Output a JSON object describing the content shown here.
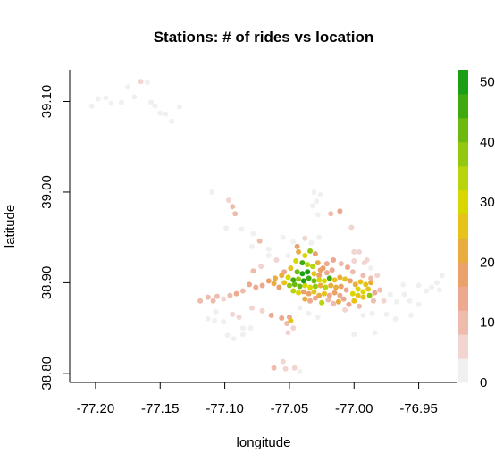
{
  "chart_data": {
    "type": "scatter",
    "title": "Stations: # of rides vs location",
    "xlabel": "longitude",
    "ylabel": "latitude",
    "xlim": [
      -77.22,
      -76.92
    ],
    "ylim": [
      38.79,
      39.135
    ],
    "x_ticks": [
      -77.2,
      -77.15,
      -77.1,
      -77.05,
      -77.0,
      -76.95
    ],
    "x_tick_labels": [
      "-77.20",
      "-77.15",
      "-77.10",
      "-77.05",
      "-77.00",
      "-76.95"
    ],
    "y_ticks": [
      38.8,
      38.9,
      39.0,
      39.1
    ],
    "y_tick_labels": [
      "38.80",
      "38.90",
      "39.00",
      "39.10"
    ],
    "colorbar": {
      "range": [
        0,
        52
      ],
      "tick_values": [
        0,
        10,
        20,
        30,
        40,
        50
      ],
      "tick_labels": [
        "0",
        "10",
        "20",
        "30",
        "40",
        "50"
      ],
      "colors": [
        "#f0f0f0",
        "#f2d4d0",
        "#eebcad",
        "#eda98f",
        "#eaa16a",
        "#e9ad3f",
        "#e6c21a",
        "#d8d800",
        "#b7d40d",
        "#92c810",
        "#6cba10",
        "#3faa10",
        "#1a9f14"
      ]
    },
    "grid": false,
    "points": [
      {
        "x": -77.203,
        "y": 39.095,
        "v": 1
      },
      {
        "x": -77.198,
        "y": 39.103,
        "v": 1
      },
      {
        "x": -77.192,
        "y": 39.104,
        "v": 1
      },
      {
        "x": -77.188,
        "y": 39.098,
        "v": 1
      },
      {
        "x": -77.18,
        "y": 39.099,
        "v": 1
      },
      {
        "x": -77.175,
        "y": 39.116,
        "v": 1
      },
      {
        "x": -77.17,
        "y": 39.105,
        "v": 1
      },
      {
        "x": -77.165,
        "y": 39.122,
        "v": 5
      },
      {
        "x": -77.16,
        "y": 39.121,
        "v": 1
      },
      {
        "x": -77.157,
        "y": 39.099,
        "v": 1
      },
      {
        "x": -77.15,
        "y": 39.087,
        "v": 1
      },
      {
        "x": -77.146,
        "y": 39.086,
        "v": 1
      },
      {
        "x": -77.141,
        "y": 39.078,
        "v": 1
      },
      {
        "x": -77.135,
        "y": 39.094,
        "v": 1
      },
      {
        "x": -77.154,
        "y": 39.095,
        "v": 1
      },
      {
        "x": -77.11,
        "y": 39.0,
        "v": 1
      },
      {
        "x": -77.097,
        "y": 38.991,
        "v": 5
      },
      {
        "x": -77.094,
        "y": 38.984,
        "v": 8
      },
      {
        "x": -77.092,
        "y": 38.976,
        "v": 8
      },
      {
        "x": -77.099,
        "y": 38.96,
        "v": 2
      },
      {
        "x": -77.087,
        "y": 38.959,
        "v": 2
      },
      {
        "x": -77.078,
        "y": 38.954,
        "v": 3
      },
      {
        "x": -77.073,
        "y": 38.946,
        "v": 11
      },
      {
        "x": -77.079,
        "y": 38.94,
        "v": 2
      },
      {
        "x": -77.066,
        "y": 38.937,
        "v": 2
      },
      {
        "x": -77.055,
        "y": 38.95,
        "v": 2
      },
      {
        "x": -77.047,
        "y": 38.945,
        "v": 3
      },
      {
        "x": -77.038,
        "y": 38.949,
        "v": 6
      },
      {
        "x": -77.033,
        "y": 38.944,
        "v": 3
      },
      {
        "x": -77.027,
        "y": 38.95,
        "v": 2
      },
      {
        "x": -77.031,
        "y": 39.0,
        "v": 1
      },
      {
        "x": -77.026,
        "y": 38.997,
        "v": 1
      },
      {
        "x": -77.029,
        "y": 38.99,
        "v": 1
      },
      {
        "x": -77.032,
        "y": 38.985,
        "v": 1
      },
      {
        "x": -77.028,
        "y": 38.975,
        "v": 1
      },
      {
        "x": -77.018,
        "y": 38.976,
        "v": 11
      },
      {
        "x": -77.011,
        "y": 38.979,
        "v": 12
      },
      {
        "x": -77.002,
        "y": 38.961,
        "v": 4
      },
      {
        "x": -77.0,
        "y": 38.934,
        "v": 6
      },
      {
        "x": -76.996,
        "y": 38.934,
        "v": 6
      },
      {
        "x": -76.992,
        "y": 38.922,
        "v": 4
      },
      {
        "x": -76.987,
        "y": 38.916,
        "v": 2
      },
      {
        "x": -77.119,
        "y": 38.88,
        "v": 8
      },
      {
        "x": -77.113,
        "y": 38.884,
        "v": 8
      },
      {
        "x": -77.109,
        "y": 38.88,
        "v": 10
      },
      {
        "x": -77.106,
        "y": 38.885,
        "v": 9
      },
      {
        "x": -77.101,
        "y": 38.882,
        "v": 7
      },
      {
        "x": -77.096,
        "y": 38.886,
        "v": 10
      },
      {
        "x": -77.091,
        "y": 38.888,
        "v": 12
      },
      {
        "x": -77.086,
        "y": 38.891,
        "v": 10
      },
      {
        "x": -77.081,
        "y": 38.898,
        "v": 12
      },
      {
        "x": -77.076,
        "y": 38.895,
        "v": 14
      },
      {
        "x": -77.071,
        "y": 38.897,
        "v": 15
      },
      {
        "x": -77.066,
        "y": 38.902,
        "v": 18
      },
      {
        "x": -77.061,
        "y": 38.905,
        "v": 20
      },
      {
        "x": -77.056,
        "y": 38.908,
        "v": 22
      },
      {
        "x": -77.107,
        "y": 38.868,
        "v": 3
      },
      {
        "x": -77.101,
        "y": 38.857,
        "v": 2
      },
      {
        "x": -77.094,
        "y": 38.865,
        "v": 4
      },
      {
        "x": -77.089,
        "y": 38.862,
        "v": 6
      },
      {
        "x": -77.086,
        "y": 38.85,
        "v": 2
      },
      {
        "x": -77.079,
        "y": 38.872,
        "v": 4
      },
      {
        "x": -77.071,
        "y": 38.869,
        "v": 5
      },
      {
        "x": -77.098,
        "y": 38.842,
        "v": 1
      },
      {
        "x": -77.093,
        "y": 38.838,
        "v": 2
      },
      {
        "x": -77.108,
        "y": 38.858,
        "v": 1
      },
      {
        "x": -77.064,
        "y": 38.864,
        "v": 13
      },
      {
        "x": -77.056,
        "y": 38.861,
        "v": 14
      },
      {
        "x": -77.052,
        "y": 38.855,
        "v": 10
      },
      {
        "x": -77.05,
        "y": 38.862,
        "v": 12
      },
      {
        "x": -77.049,
        "y": 38.858,
        "v": 27
      },
      {
        "x": -77.051,
        "y": 38.845,
        "v": 6
      },
      {
        "x": -77.047,
        "y": 38.85,
        "v": 4
      },
      {
        "x": -77.062,
        "y": 38.806,
        "v": 11
      },
      {
        "x": -77.055,
        "y": 38.813,
        "v": 7
      },
      {
        "x": -77.053,
        "y": 38.805,
        "v": 5
      },
      {
        "x": -77.046,
        "y": 38.806,
        "v": 4
      },
      {
        "x": -77.042,
        "y": 38.802,
        "v": 1
      },
      {
        "x": -77.043,
        "y": 38.934,
        "v": 20
      },
      {
        "x": -77.038,
        "y": 38.93,
        "v": 30
      },
      {
        "x": -77.034,
        "y": 38.935,
        "v": 38
      },
      {
        "x": -77.03,
        "y": 38.932,
        "v": 18
      },
      {
        "x": -77.045,
        "y": 38.924,
        "v": 28
      },
      {
        "x": -77.04,
        "y": 38.922,
        "v": 44
      },
      {
        "x": -77.036,
        "y": 38.92,
        "v": 34
      },
      {
        "x": -77.032,
        "y": 38.918,
        "v": 32
      },
      {
        "x": -77.028,
        "y": 38.922,
        "v": 22
      },
      {
        "x": -77.024,
        "y": 38.916,
        "v": 18
      },
      {
        "x": -77.049,
        "y": 38.916,
        "v": 24
      },
      {
        "x": -77.044,
        "y": 38.912,
        "v": 40
      },
      {
        "x": -77.04,
        "y": 38.91,
        "v": 52
      },
      {
        "x": -77.036,
        "y": 38.912,
        "v": 48
      },
      {
        "x": -77.031,
        "y": 38.91,
        "v": 26
      },
      {
        "x": -77.027,
        "y": 38.908,
        "v": 16
      },
      {
        "x": -77.021,
        "y": 38.911,
        "v": 14
      },
      {
        "x": -77.017,
        "y": 38.914,
        "v": 12
      },
      {
        "x": -77.051,
        "y": 38.906,
        "v": 30
      },
      {
        "x": -77.047,
        "y": 38.903,
        "v": 46
      },
      {
        "x": -77.043,
        "y": 38.904,
        "v": 36
      },
      {
        "x": -77.039,
        "y": 38.902,
        "v": 50
      },
      {
        "x": -77.035,
        "y": 38.905,
        "v": 44
      },
      {
        "x": -77.031,
        "y": 38.902,
        "v": 42
      },
      {
        "x": -77.027,
        "y": 38.903,
        "v": 30
      },
      {
        "x": -77.023,
        "y": 38.902,
        "v": 28
      },
      {
        "x": -77.019,
        "y": 38.905,
        "v": 46
      },
      {
        "x": -77.015,
        "y": 38.903,
        "v": 24
      },
      {
        "x": -77.011,
        "y": 38.906,
        "v": 22
      },
      {
        "x": -77.007,
        "y": 38.904,
        "v": 26
      },
      {
        "x": -77.054,
        "y": 38.9,
        "v": 24
      },
      {
        "x": -77.05,
        "y": 38.897,
        "v": 36
      },
      {
        "x": -77.046,
        "y": 38.898,
        "v": 42
      },
      {
        "x": -77.042,
        "y": 38.896,
        "v": 40
      },
      {
        "x": -77.038,
        "y": 38.897,
        "v": 30
      },
      {
        "x": -77.034,
        "y": 38.895,
        "v": 28
      },
      {
        "x": -77.03,
        "y": 38.896,
        "v": 36
      },
      {
        "x": -77.026,
        "y": 38.897,
        "v": 22
      },
      {
        "x": -77.022,
        "y": 38.895,
        "v": 34
      },
      {
        "x": -77.018,
        "y": 38.897,
        "v": 20
      },
      {
        "x": -77.014,
        "y": 38.895,
        "v": 22
      },
      {
        "x": -77.01,
        "y": 38.896,
        "v": 18
      },
      {
        "x": -77.047,
        "y": 38.891,
        "v": 32
      },
      {
        "x": -77.043,
        "y": 38.889,
        "v": 28
      },
      {
        "x": -77.039,
        "y": 38.89,
        "v": 18
      },
      {
        "x": -77.035,
        "y": 38.888,
        "v": 16
      },
      {
        "x": -77.031,
        "y": 38.89,
        "v": 24
      },
      {
        "x": -77.027,
        "y": 38.886,
        "v": 20
      },
      {
        "x": -77.023,
        "y": 38.888,
        "v": 26
      },
      {
        "x": -77.019,
        "y": 38.886,
        "v": 14
      },
      {
        "x": -77.015,
        "y": 38.889,
        "v": 16
      },
      {
        "x": -77.011,
        "y": 38.886,
        "v": 12
      },
      {
        "x": -77.038,
        "y": 38.882,
        "v": 22
      },
      {
        "x": -77.034,
        "y": 38.88,
        "v": 14
      },
      {
        "x": -77.03,
        "y": 38.883,
        "v": 12
      },
      {
        "x": -77.025,
        "y": 38.878,
        "v": 32
      },
      {
        "x": -77.02,
        "y": 38.881,
        "v": 10
      },
      {
        "x": -77.016,
        "y": 38.877,
        "v": 8
      },
      {
        "x": -77.012,
        "y": 38.879,
        "v": 20
      },
      {
        "x": -77.044,
        "y": 38.94,
        "v": 18
      },
      {
        "x": -77.058,
        "y": 38.895,
        "v": 16
      },
      {
        "x": -77.062,
        "y": 38.899,
        "v": 20
      },
      {
        "x": -77.054,
        "y": 38.912,
        "v": 14
      },
      {
        "x": -77.026,
        "y": 38.914,
        "v": 16
      },
      {
        "x": -77.021,
        "y": 38.921,
        "v": 14
      },
      {
        "x": -77.016,
        "y": 38.925,
        "v": 12
      },
      {
        "x": -77.01,
        "y": 38.921,
        "v": 10
      },
      {
        "x": -77.005,
        "y": 38.917,
        "v": 12
      },
      {
        "x": -77.001,
        "y": 38.912,
        "v": 10
      },
      {
        "x": -77.003,
        "y": 38.902,
        "v": 16
      },
      {
        "x": -76.999,
        "y": 38.898,
        "v": 22
      },
      {
        "x": -76.995,
        "y": 38.901,
        "v": 24
      },
      {
        "x": -76.991,
        "y": 38.898,
        "v": 26
      },
      {
        "x": -76.987,
        "y": 38.9,
        "v": 20
      },
      {
        "x": -76.997,
        "y": 38.893,
        "v": 28
      },
      {
        "x": -76.993,
        "y": 38.89,
        "v": 30
      },
      {
        "x": -76.989,
        "y": 38.893,
        "v": 26
      },
      {
        "x": -77.001,
        "y": 38.888,
        "v": 28
      },
      {
        "x": -76.997,
        "y": 38.886,
        "v": 26
      },
      {
        "x": -76.993,
        "y": 38.884,
        "v": 24
      },
      {
        "x": -77.0,
        "y": 38.88,
        "v": 27
      },
      {
        "x": -76.988,
        "y": 38.886,
        "v": 36
      },
      {
        "x": -76.984,
        "y": 38.889,
        "v": 14
      },
      {
        "x": -76.98,
        "y": 38.892,
        "v": 10
      },
      {
        "x": -77.006,
        "y": 38.892,
        "v": 12
      },
      {
        "x": -77.008,
        "y": 38.882,
        "v": 12
      },
      {
        "x": -77.004,
        "y": 38.876,
        "v": 14
      },
      {
        "x": -77.007,
        "y": 38.87,
        "v": 6
      },
      {
        "x": -76.996,
        "y": 38.874,
        "v": 8
      },
      {
        "x": -76.985,
        "y": 38.88,
        "v": 8
      },
      {
        "x": -76.993,
        "y": 38.908,
        "v": 8
      },
      {
        "x": -76.987,
        "y": 38.905,
        "v": 10
      },
      {
        "x": -76.982,
        "y": 38.908,
        "v": 6
      },
      {
        "x": -77.0,
        "y": 38.924,
        "v": 4
      },
      {
        "x": -76.99,
        "y": 38.925,
        "v": 4
      },
      {
        "x": -76.977,
        "y": 38.88,
        "v": 4
      },
      {
        "x": -76.972,
        "y": 38.887,
        "v": 3
      },
      {
        "x": -76.967,
        "y": 38.879,
        "v": 2
      },
      {
        "x": -76.961,
        "y": 38.887,
        "v": 3
      },
      {
        "x": -76.957,
        "y": 38.88,
        "v": 2
      },
      {
        "x": -76.95,
        "y": 38.897,
        "v": 2
      },
      {
        "x": -76.944,
        "y": 38.891,
        "v": 2
      },
      {
        "x": -76.94,
        "y": 38.895,
        "v": 1
      },
      {
        "x": -76.936,
        "y": 38.9,
        "v": 1
      },
      {
        "x": -76.932,
        "y": 38.908,
        "v": 1
      },
      {
        "x": -76.934,
        "y": 38.892,
        "v": 1
      },
      {
        "x": -76.956,
        "y": 38.864,
        "v": 1
      },
      {
        "x": -76.968,
        "y": 38.86,
        "v": 1
      },
      {
        "x": -76.975,
        "y": 38.865,
        "v": 1
      },
      {
        "x": -76.986,
        "y": 38.866,
        "v": 2
      },
      {
        "x": -76.993,
        "y": 38.864,
        "v": 1
      },
      {
        "x": -77.0,
        "y": 38.843,
        "v": 1
      },
      {
        "x": -76.984,
        "y": 38.845,
        "v": 1
      },
      {
        "x": -76.95,
        "y": 38.876,
        "v": 1
      },
      {
        "x": -76.962,
        "y": 38.898,
        "v": 2
      },
      {
        "x": -77.042,
        "y": 38.872,
        "v": 2
      },
      {
        "x": -77.035,
        "y": 38.866,
        "v": 1
      },
      {
        "x": -77.028,
        "y": 38.862,
        "v": 1
      },
      {
        "x": -77.08,
        "y": 38.85,
        "v": 2
      },
      {
        "x": -77.086,
        "y": 38.843,
        "v": 1
      },
      {
        "x": -77.113,
        "y": 38.86,
        "v": 1
      },
      {
        "x": -77.072,
        "y": 38.918,
        "v": 4
      },
      {
        "x": -77.078,
        "y": 38.913,
        "v": 8
      },
      {
        "x": -77.06,
        "y": 38.925,
        "v": 4
      },
      {
        "x": -77.066,
        "y": 38.93,
        "v": 3
      },
      {
        "x": -77.051,
        "y": 38.93,
        "v": 3
      }
    ]
  }
}
